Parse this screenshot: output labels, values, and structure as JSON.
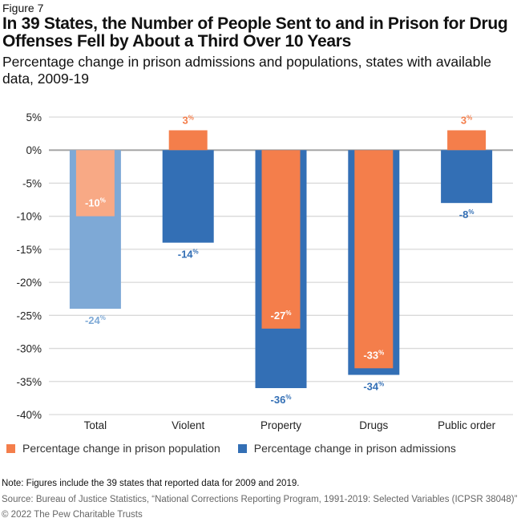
{
  "figure_label": "Figure 7",
  "chart_data": {
    "type": "bar",
    "title": "In 39 States, the Number of People Sent to and in Prison for Drug Offenses Fell by About a Third Over 10 Years",
    "subtitle": "Percentage change in prison admissions and populations, states with available data, 2009-19",
    "categories": [
      "Total",
      "Violent",
      "Property",
      "Drugs",
      "Public order"
    ],
    "series": [
      {
        "name": "Percentage change in prison admissions",
        "color": "#336fb5",
        "total_color": "#7ea9d6",
        "values": [
          -24,
          -14,
          -36,
          -34,
          -8
        ]
      },
      {
        "name": "Percentage change in prison population",
        "color": "#f47e4b",
        "total_color": "#f8a985",
        "values": [
          -10,
          3,
          -27,
          -33,
          3
        ]
      }
    ],
    "ylim": [
      -40,
      5
    ],
    "yticks": [
      5,
      0,
      -5,
      -10,
      -15,
      -20,
      -25,
      -30,
      -35,
      -40
    ],
    "ytick_suffix": "%",
    "data_label_suffix": "%",
    "grid": true,
    "legend": "bottom",
    "bars_overlapped": true
  },
  "note": "Note: Figures include the 39 states that reported data for 2009 and 2019.",
  "source": "Source: Bureau of Justice Statistics, “National Corrections Reporting Program, 1991-2019: Selected Variables (ICPSR 38048)”",
  "copyright": "© 2022 The Pew Charitable Trusts"
}
